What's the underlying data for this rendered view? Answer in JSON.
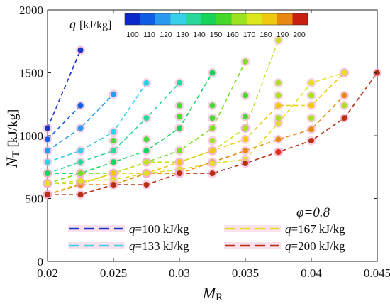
{
  "chart_data": {
    "type": "scatter",
    "xlabel": "M",
    "xlabel_sub": "R",
    "ylabel": "N",
    "ylabel_sub": "T",
    "ylabel_unit": "[kJ/kg]",
    "xlim": [
      0.02,
      0.045
    ],
    "ylim": [
      0,
      2000
    ],
    "x_ticks": [
      "0.02",
      "0.025",
      "0.03",
      "0.035",
      "0.04",
      "0.045"
    ],
    "y_ticks": [
      "0",
      "500",
      "1000",
      "1500",
      "2000"
    ],
    "grid": false,
    "colorbar": {
      "label": "q",
      "unit": "[kJ/kg]",
      "ticks": [
        "100",
        "110",
        "120",
        "130",
        "140",
        "150",
        "160",
        "170",
        "180",
        "190",
        "200"
      ],
      "colors": [
        "#0b28c8",
        "#0f5fe6",
        "#2a9aee",
        "#37d0e8",
        "#29d79a",
        "#16d35a",
        "#43d82a",
        "#9be31e",
        "#dde81a",
        "#f0c80f",
        "#e88a12",
        "#c82010"
      ]
    },
    "annotation": "φ=0.8",
    "legend": {
      "placement": "bottom",
      "entries": [
        {
          "label": "q=100 kJ/kg",
          "color": "#1a35c8"
        },
        {
          "label": "q=133 kJ/kg",
          "color": "#2fd0e8"
        },
        {
          "label": "q=167 kJ/kg",
          "color": "#e2e022"
        },
        {
          "label": "q=200 kJ/kg",
          "color": "#b82e12"
        }
      ]
    },
    "series": [
      {
        "q": 100,
        "color": "#1a35c8",
        "points": [
          [
            0.02,
            1060
          ],
          [
            0.0225,
            1680
          ]
        ]
      },
      {
        "q": 133,
        "color": "#2fd0e8",
        "points": [
          [
            0.02,
            790
          ],
          [
            0.0225,
            880
          ],
          [
            0.025,
            1030
          ],
          [
            0.0275,
            1420
          ]
        ]
      },
      {
        "q": 167,
        "color": "#e2e022",
        "points": [
          [
            0.02,
            620
          ],
          [
            0.0225,
            640
          ],
          [
            0.025,
            650
          ],
          [
            0.0275,
            700
          ],
          [
            0.03,
            730
          ],
          [
            0.0325,
            780
          ],
          [
            0.035,
            810
          ],
          [
            0.0375,
            1100
          ],
          [
            0.04,
            1420
          ],
          [
            0.0425,
            1500
          ]
        ]
      },
      {
        "q": 200,
        "color": "#b82e12",
        "points": [
          [
            0.02,
            530
          ],
          [
            0.0225,
            530
          ],
          [
            0.025,
            610
          ],
          [
            0.0275,
            610
          ],
          [
            0.03,
            700
          ],
          [
            0.0325,
            700
          ],
          [
            0.035,
            780
          ],
          [
            0.0375,
            870
          ],
          [
            0.04,
            960
          ],
          [
            0.0425,
            1140
          ],
          [
            0.045,
            1500
          ]
        ]
      }
    ],
    "curves": [
      {
        "q": 110,
        "color": "#1060e6",
        "points": [
          [
            0.02,
            970
          ],
          [
            0.0225,
            1240
          ]
        ]
      },
      {
        "q": 120,
        "color": "#2a9aee",
        "points": [
          [
            0.02,
            880
          ],
          [
            0.0225,
            1060
          ],
          [
            0.025,
            1330
          ]
        ]
      },
      {
        "q": 140,
        "color": "#29d79a",
        "points": [
          [
            0.02,
            700
          ],
          [
            0.0225,
            790
          ],
          [
            0.025,
            880
          ],
          [
            0.0275,
            1140
          ],
          [
            0.03,
            1420
          ]
        ]
      },
      {
        "q": 150,
        "color": "#16d35a",
        "points": [
          [
            0.02,
            700
          ],
          [
            0.0225,
            700
          ],
          [
            0.025,
            790
          ],
          [
            0.0275,
            880
          ],
          [
            0.03,
            1060
          ],
          [
            0.0325,
            1500
          ]
        ]
      },
      {
        "q": 160,
        "color": "#7be021",
        "points": [
          [
            0.02,
            620
          ],
          [
            0.0225,
            700
          ],
          [
            0.025,
            700
          ],
          [
            0.0275,
            790
          ],
          [
            0.03,
            880
          ],
          [
            0.0325,
            1060
          ],
          [
            0.035,
            1590
          ]
        ]
      },
      {
        "q": 170,
        "color": "#c0e41e",
        "points": [
          [
            0.02,
            620
          ],
          [
            0.0225,
            620
          ],
          [
            0.025,
            700
          ],
          [
            0.0275,
            790
          ],
          [
            0.03,
            790
          ],
          [
            0.0325,
            880
          ],
          [
            0.035,
            1060
          ],
          [
            0.0375,
            1760
          ]
        ]
      },
      {
        "q": 180,
        "color": "#f0c80f",
        "points": [
          [
            0.02,
            530
          ],
          [
            0.0225,
            620
          ],
          [
            0.025,
            700
          ],
          [
            0.0275,
            700
          ],
          [
            0.03,
            790
          ],
          [
            0.0325,
            880
          ],
          [
            0.035,
            970
          ],
          [
            0.0375,
            1240
          ],
          [
            0.04,
            1240
          ],
          [
            0.0425,
            1500
          ]
        ]
      },
      {
        "q": 190,
        "color": "#e88a12",
        "points": [
          [
            0.02,
            530
          ],
          [
            0.0225,
            610
          ],
          [
            0.025,
            610
          ],
          [
            0.0275,
            700
          ],
          [
            0.03,
            700
          ],
          [
            0.0325,
            790
          ],
          [
            0.035,
            880
          ],
          [
            0.0375,
            970
          ],
          [
            0.04,
            1050
          ],
          [
            0.0425,
            1320
          ]
        ]
      }
    ],
    "extra_points": [
      {
        "color": "#4ad838",
        "points": [
          [
            0.025,
            960
          ],
          [
            0.0275,
            970
          ],
          [
            0.03,
            1150
          ],
          [
            0.03,
            1240
          ],
          [
            0.0325,
            1140
          ],
          [
            0.0325,
            1240
          ],
          [
            0.035,
            1320
          ],
          [
            0.035,
            1150
          ]
        ]
      },
      {
        "color": "#a8e220",
        "points": [
          [
            0.0325,
            960
          ],
          [
            0.035,
            1060
          ],
          [
            0.0375,
            1420
          ],
          [
            0.0375,
            1320
          ],
          [
            0.0375,
            1140
          ],
          [
            0.04,
            1320
          ],
          [
            0.04,
            1140
          ],
          [
            0.0425,
            1240
          ]
        ]
      },
      {
        "color": "#e4281a",
        "points": [
          [
            0.0375,
            870
          ]
        ]
      }
    ]
  }
}
